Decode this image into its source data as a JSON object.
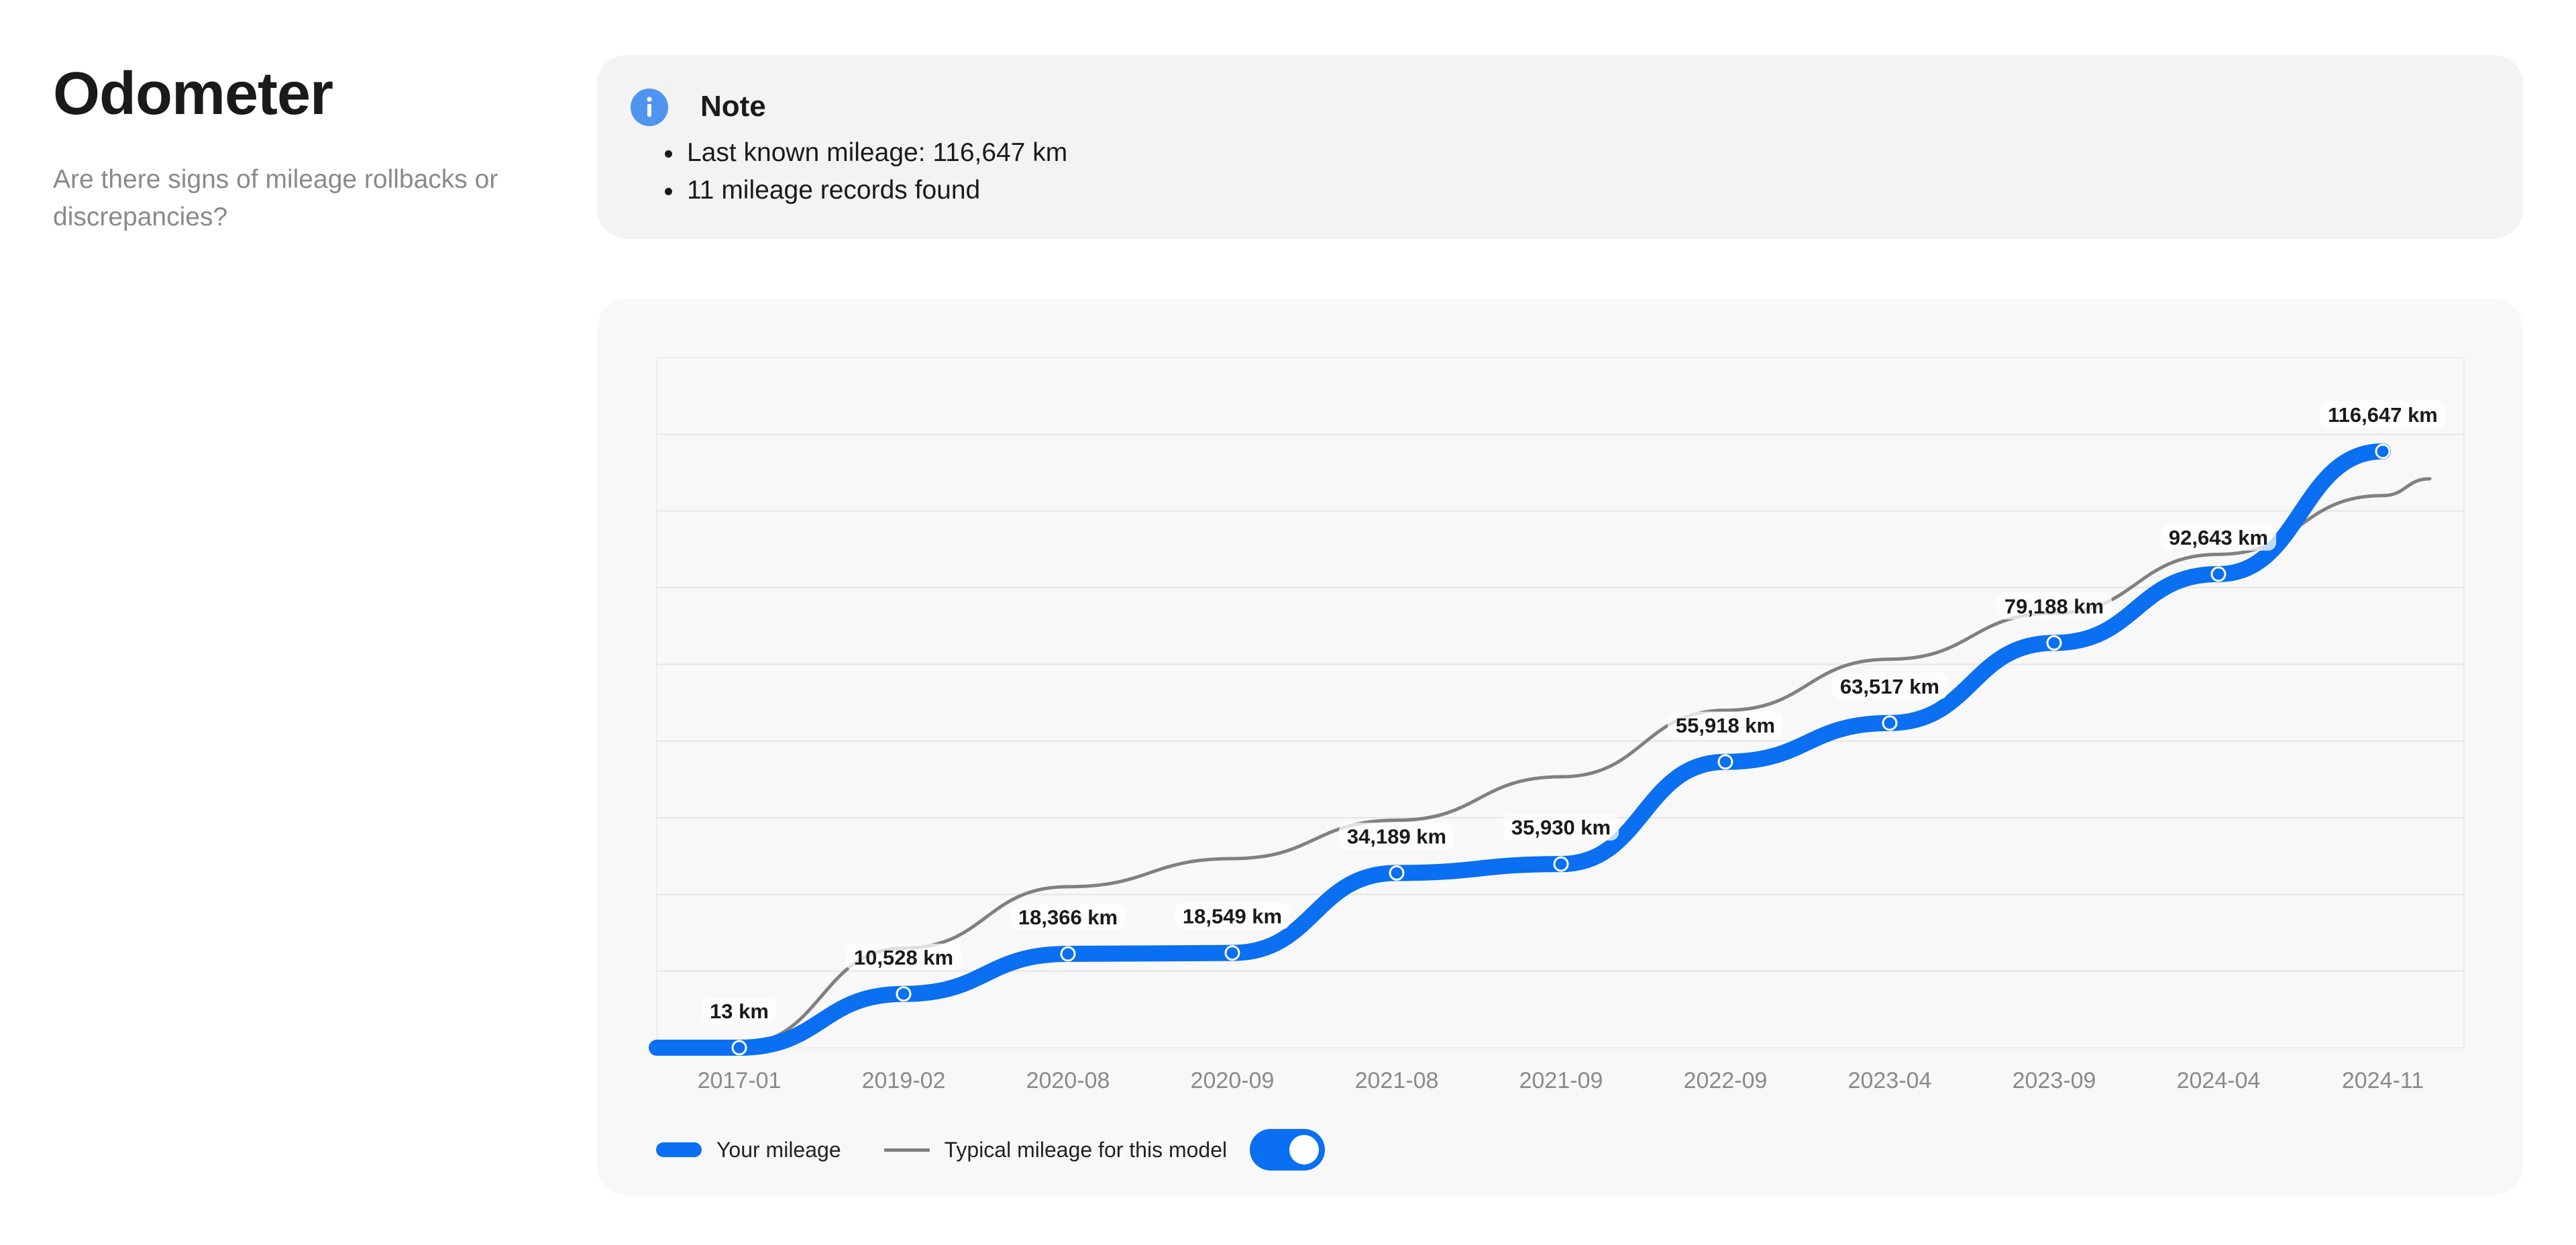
{
  "header": {
    "title": "Odometer",
    "subtitle": "Are there signs of mileage rollbacks or discrepancies?"
  },
  "note": {
    "icon": "info-icon",
    "title": "Note",
    "items": [
      "Last known mileage: 116,647 km",
      "11 mileage records found"
    ]
  },
  "colors": {
    "accent": "#0a6ff0",
    "typical_line": "#808080",
    "info_icon": "#4f95ef"
  },
  "legend": {
    "your_mileage": "Your mileage",
    "typical": "Typical mileage for this model",
    "toggle_on": true
  },
  "chart_data": {
    "type": "line",
    "categories": [
      "2017-01",
      "2019-02",
      "2020-08",
      "2020-09",
      "2021-08",
      "2021-09",
      "2022-09",
      "2023-04",
      "2023-09",
      "2024-04",
      "2024-11"
    ],
    "ylim": [
      0,
      135000
    ],
    "grid": true,
    "legend_position": "bottom-left",
    "series": [
      {
        "name": "Your mileage",
        "values": [
          13,
          10528,
          18366,
          18549,
          34189,
          35930,
          55918,
          63517,
          79188,
          92643,
          116647
        ],
        "labels": [
          "13 km",
          "10,528 km",
          "18,366 km",
          "18,549 km",
          "34,189 km",
          "35,930 km",
          "55,918 km",
          "63,517 km",
          "79,188 km",
          "92,643 km",
          "116,647 km"
        ]
      },
      {
        "name": "Typical mileage for this model",
        "values": [
          700,
          19500,
          31500,
          37000,
          44500,
          53000,
          66000,
          76000,
          85000,
          96500,
          108000
        ]
      }
    ]
  }
}
